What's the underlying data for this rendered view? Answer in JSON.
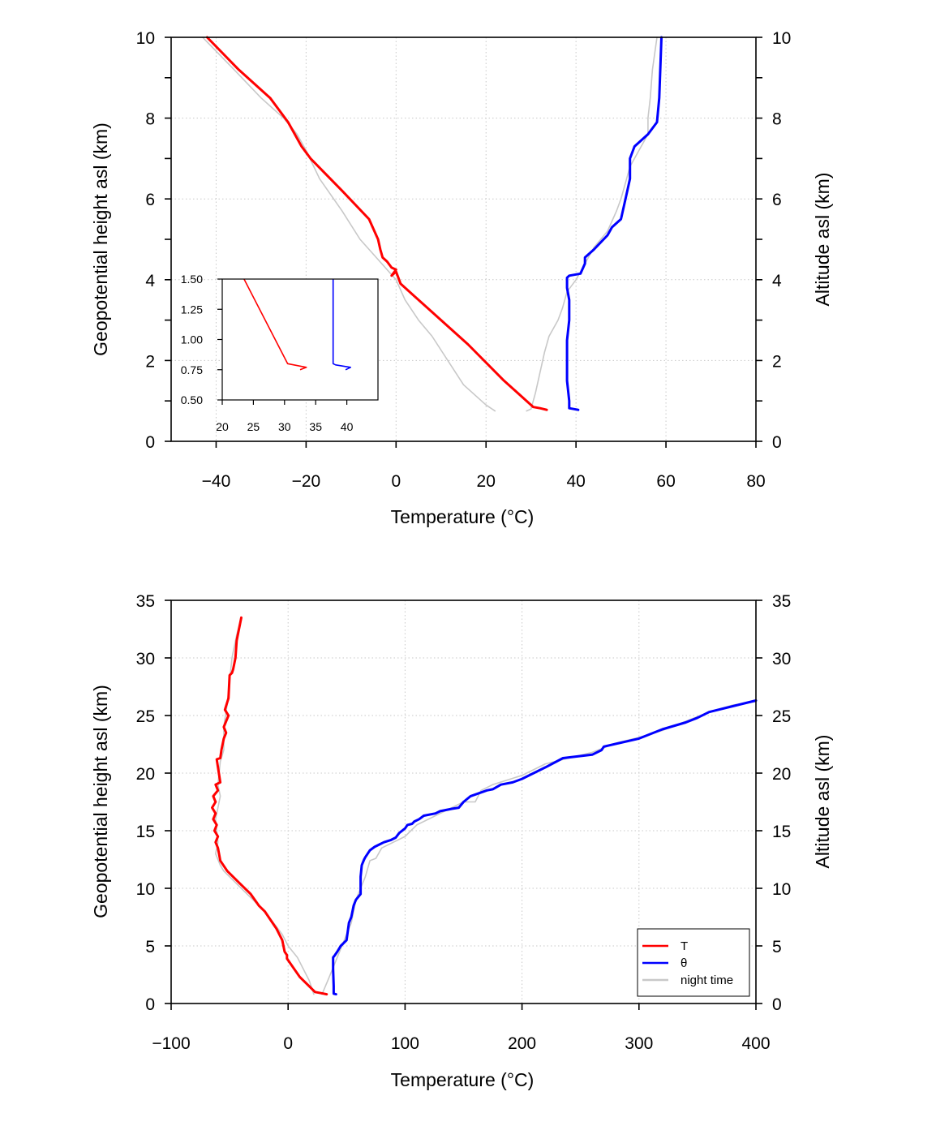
{
  "chart_data": [
    {
      "type": "line",
      "panel": "top",
      "xlabel": "Temperature (°C)",
      "ylabel": "Geopotential height asl (km)",
      "y2label": "Altitude asl (km)",
      "xlim": [
        -50,
        80
      ],
      "ylim": [
        0,
        10
      ],
      "xticks": [
        -40,
        -20,
        0,
        20,
        40,
        60,
        80
      ],
      "xtick_labels": [
        "−40",
        "−20",
        "0",
        "20",
        "40",
        "60",
        "80"
      ],
      "yticks": [
        0,
        2,
        4,
        6,
        8,
        10
      ],
      "ytick_labels": [
        "0",
        "2",
        "4",
        "6",
        "8",
        "10"
      ],
      "y2tick_labels": [
        "0",
        "2",
        "4",
        "6",
        "8",
        "10"
      ],
      "yticks_minor": [
        1,
        3,
        5,
        7,
        9
      ],
      "grid": true,
      "series": [
        {
          "name": "night time (T)",
          "color": "#c8c8c8",
          "width": 1.6,
          "x": [
            22,
            20,
            15,
            8,
            5,
            2,
            0,
            -4,
            -8,
            -12,
            -17,
            -20,
            -22,
            -25,
            -30,
            -36,
            -43
          ],
          "y": [
            0.75,
            0.9,
            1.4,
            2.6,
            3.0,
            3.5,
            4.0,
            4.5,
            5.0,
            5.7,
            6.5,
            7.2,
            7.6,
            8.0,
            8.5,
            9.2,
            10.0
          ]
        },
        {
          "name": "night time (θ)",
          "color": "#c8c8c8",
          "width": 1.6,
          "x": [
            29,
            30,
            31,
            33,
            34,
            36,
            37,
            38,
            40,
            42,
            44,
            47,
            49,
            50,
            51,
            52,
            54,
            56,
            56,
            56.5,
            57,
            58
          ],
          "y": [
            0.75,
            0.8,
            1.2,
            2.2,
            2.6,
            3.0,
            3.3,
            3.7,
            4.0,
            4.4,
            4.8,
            5.2,
            5.7,
            6.0,
            6.4,
            6.8,
            7.2,
            7.6,
            8.0,
            8.5,
            9.2,
            10.0
          ]
        },
        {
          "name": "T",
          "color": "#ff0000",
          "width": 3,
          "x": [
            33.5,
            32,
            30.5,
            27,
            24,
            16,
            9,
            1,
            0,
            -1,
            0,
            -1,
            -2,
            -3,
            -3.5,
            -4,
            -6,
            -12,
            -19,
            -21,
            -24,
            -28,
            -35,
            -42
          ],
          "y": [
            0.78,
            0.82,
            0.85,
            1.2,
            1.5,
            2.4,
            3.1,
            3.9,
            4.2,
            4.1,
            4.25,
            4.3,
            4.45,
            4.55,
            4.75,
            5.0,
            5.5,
            6.2,
            7.0,
            7.3,
            7.9,
            8.5,
            9.2,
            10.0
          ]
        },
        {
          "name": "θ",
          "color": "#0000ff",
          "width": 3,
          "x": [
            40.5,
            38.5,
            38.5,
            38,
            38,
            38,
            38.5,
            38.5,
            38,
            38,
            38.5,
            41,
            42,
            42,
            44,
            47,
            48,
            50,
            51,
            52,
            52,
            53,
            56,
            58,
            58.5,
            59
          ],
          "y": [
            0.78,
            0.82,
            1.0,
            1.5,
            2.0,
            2.5,
            3.0,
            3.5,
            3.8,
            4.05,
            4.1,
            4.15,
            4.4,
            4.55,
            4.75,
            5.1,
            5.3,
            5.5,
            6.0,
            6.5,
            7.0,
            7.3,
            7.6,
            7.9,
            8.5,
            10.0
          ]
        }
      ],
      "inset": {
        "xlim": [
          20,
          45
        ],
        "ylim": [
          0.5,
          1.5
        ],
        "xticks": [
          20,
          25,
          30,
          35,
          40
        ],
        "xtick_labels": [
          "20",
          "25",
          "30",
          "35",
          "40"
        ],
        "yticks": [
          0.5,
          0.75,
          1.0,
          1.25,
          1.5
        ],
        "ytick_labels": [
          "0.50",
          "0.75",
          "1.00",
          "1.25",
          "1.50"
        ],
        "series": [
          {
            "name": "T",
            "color": "#ff0000",
            "width": 1.6,
            "x": [
              23.5,
              30.5,
              33.5,
              32.5
            ],
            "y": [
              1.5,
              0.8,
              0.77,
              0.75
            ]
          },
          {
            "name": "θ",
            "color": "#0000ff",
            "width": 1.6,
            "x": [
              37.8,
              37.8,
              38.2,
              40.6,
              39.8
            ],
            "y": [
              1.5,
              0.8,
              0.79,
              0.77,
              0.75
            ]
          }
        ]
      }
    },
    {
      "type": "line",
      "panel": "bottom",
      "xlabel": "Temperature (°C)",
      "ylabel": "Geopotential height asl (km)",
      "y2label": "Altitude asl (km)",
      "xlim": [
        -100,
        400
      ],
      "ylim": [
        0,
        35
      ],
      "xticks": [
        -100,
        0,
        100,
        200,
        300,
        400
      ],
      "xtick_labels": [
        "−100",
        "0",
        "100",
        "200",
        "300",
        "400"
      ],
      "yticks": [
        0,
        5,
        10,
        15,
        20,
        25,
        30,
        35
      ],
      "ytick_labels": [
        "0",
        "5",
        "10",
        "15",
        "20",
        "25",
        "30",
        "35"
      ],
      "y2tick_labels": [
        "0",
        "5",
        "10",
        "15",
        "20",
        "25",
        "30",
        "35"
      ],
      "grid": true,
      "series": [
        {
          "name": "night time",
          "color": "#c8c8c8",
          "width": 1.6,
          "in_legend": true,
          "x": [
            22,
            18,
            8,
            0,
            -5,
            -20,
            -40,
            -55,
            -58,
            -62,
            -60,
            -62,
            -60,
            -58,
            -60,
            -58,
            -55,
            -55,
            -52,
            -50,
            -48,
            -44,
            -40
          ],
          "y": [
            0.8,
            2,
            4,
            5,
            6,
            8,
            10,
            11.5,
            12,
            13,
            14,
            16,
            17,
            18,
            19,
            21,
            22,
            24,
            26,
            28,
            30,
            32,
            33.5
          ]
        },
        {
          "name": "night time (θ)",
          "color": "#c8c8c8",
          "width": 1.6,
          "x": [
            29,
            34,
            38,
            42,
            50,
            54,
            58,
            62,
            66,
            70,
            75,
            80,
            90,
            100,
            105,
            110,
            130,
            150,
            160,
            165,
            175,
            200,
            220,
            240,
            260,
            280,
            300,
            320,
            340,
            360,
            380,
            400
          ],
          "y": [
            0.8,
            2,
            3,
            4,
            6,
            7,
            9,
            10,
            11,
            12.4,
            12.6,
            13.5,
            14,
            14.5,
            15,
            15.5,
            16.5,
            17.5,
            17.5,
            18.5,
            19,
            19.8,
            20.8,
            21.3,
            21.8,
            22.6,
            23.1,
            23.7,
            24.5,
            25.3,
            25.9,
            26.2
          ]
        },
        {
          "name": "T",
          "color": "#ff0000",
          "width": 3,
          "in_legend": true,
          "x": [
            33,
            28,
            23,
            10,
            -1,
            -1,
            -3,
            -5,
            -10,
            -20,
            -25,
            -32,
            -42,
            -52,
            -58,
            -60,
            -62,
            -60,
            -63,
            -61,
            -64,
            -62,
            -65,
            -62,
            -64,
            -60,
            -62,
            -58,
            -61,
            -58,
            -57,
            -55,
            -53,
            -55,
            -51,
            -54,
            -51,
            -50,
            -48,
            -47,
            -45,
            -44,
            -43,
            -40
          ],
          "y": [
            0.8,
            0.9,
            1.0,
            2.3,
            3.9,
            4.2,
            4.5,
            5.5,
            6.5,
            8.0,
            8.5,
            9.5,
            10.5,
            11.5,
            12.4,
            13.5,
            14.0,
            14.5,
            15.0,
            15.5,
            16.0,
            16.5,
            17.0,
            17.5,
            18.0,
            18.5,
            19.0,
            19.2,
            21.2,
            21.3,
            22.0,
            23.0,
            23.5,
            24.0,
            25.0,
            25.5,
            26.5,
            28.5,
            28.7,
            29.0,
            30.0,
            31.5,
            32.0,
            33.5
          ]
        },
        {
          "name": "θ",
          "color": "#0000ff",
          "width": 3,
          "in_legend": true,
          "x": [
            41,
            39,
            39,
            38.5,
            38.5,
            40,
            42,
            45,
            50,
            52,
            54,
            56,
            58,
            62,
            62,
            62,
            63,
            65,
            66,
            70,
            74,
            78,
            82,
            88,
            92,
            95,
            100,
            102,
            106,
            108,
            112,
            116,
            126,
            130,
            140,
            146,
            150,
            156,
            170,
            175,
            182,
            192,
            200,
            220,
            235,
            260,
            268,
            270,
            300,
            320,
            340,
            350,
            360,
            400
          ],
          "y": [
            0.8,
            0.85,
            1.5,
            3.0,
            4.0,
            4.2,
            4.5,
            5.0,
            5.5,
            7.0,
            7.5,
            8.5,
            9.0,
            9.5,
            10.0,
            11.0,
            12.0,
            12.5,
            12.7,
            13.3,
            13.6,
            13.8,
            14.0,
            14.2,
            14.4,
            14.8,
            15.2,
            15.5,
            15.6,
            15.8,
            16.0,
            16.3,
            16.5,
            16.7,
            16.9,
            17.0,
            17.5,
            18.0,
            18.5,
            18.6,
            19.0,
            19.2,
            19.5,
            20.5,
            21.3,
            21.6,
            22.0,
            22.3,
            23.0,
            23.8,
            24.4,
            24.8,
            25.3,
            26.3
          ]
        }
      ],
      "legend": {
        "position": "bottom-right",
        "entries": [
          {
            "label": "T",
            "color": "#ff0000"
          },
          {
            "label": "θ",
            "color": "#0000ff"
          },
          {
            "label": "night time",
            "color": "#c8c8c8"
          }
        ]
      }
    }
  ]
}
